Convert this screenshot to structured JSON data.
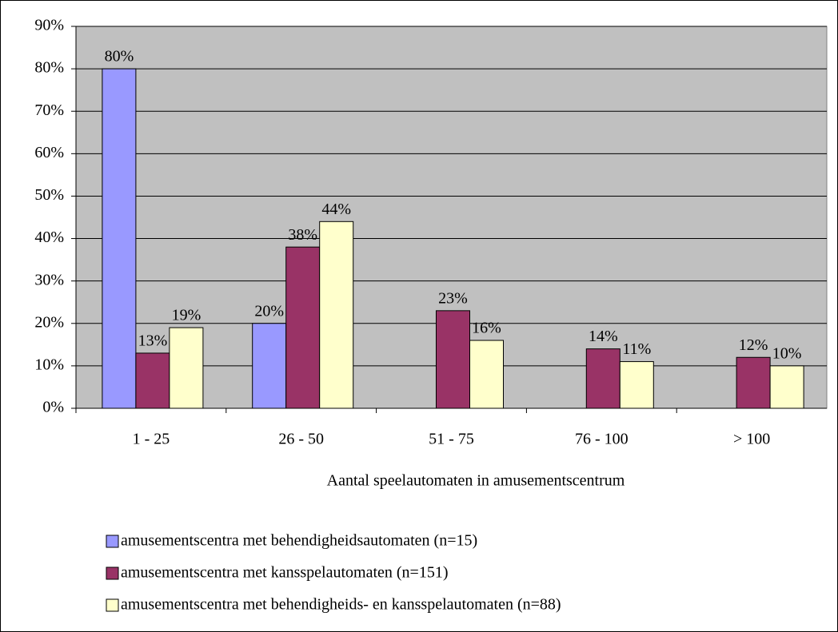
{
  "chart_data": {
    "type": "bar",
    "categories": [
      "1 - 25",
      "26 - 50",
      "51 - 75",
      "76 - 100",
      "> 100"
    ],
    "series": [
      {
        "name": "amusementscentra met behendigheidsautomaten (n=15)",
        "color": "#9999ff",
        "values": [
          80,
          20,
          null,
          null,
          null
        ],
        "value_labels": [
          "80%",
          "20%",
          null,
          null,
          null
        ]
      },
      {
        "name": "amusementscentra met kansspelautomaten (n=151)",
        "color": "#993366",
        "values": [
          13,
          38,
          23,
          14,
          12
        ],
        "value_labels": [
          "13%",
          "38%",
          "23%",
          "14%",
          "12%"
        ]
      },
      {
        "name": "amusementscentra met behendigheids- en kansspelautomaten (n=88)",
        "color": "#ffffcc",
        "values": [
          19,
          44,
          16,
          11,
          10
        ],
        "value_labels": [
          "19%",
          "44%",
          "16%",
          "11%",
          "10%"
        ]
      }
    ],
    "xlabel": "Aantal speelautomaten in amusementscentrum",
    "ylim": [
      0,
      90
    ],
    "yticks": [
      {
        "value": 0,
        "label": "0%"
      },
      {
        "value": 10,
        "label": "10%"
      },
      {
        "value": 20,
        "label": "20%"
      },
      {
        "value": 30,
        "label": "30%"
      },
      {
        "value": 40,
        "label": "40%"
      },
      {
        "value": 50,
        "label": "50%"
      },
      {
        "value": 60,
        "label": "60%"
      },
      {
        "value": 70,
        "label": "70%"
      },
      {
        "value": 80,
        "label": "80%"
      },
      {
        "value": 90,
        "label": "90%"
      }
    ],
    "grid": true,
    "plot_background": "#c0c0c0",
    "legend": "bottom"
  }
}
